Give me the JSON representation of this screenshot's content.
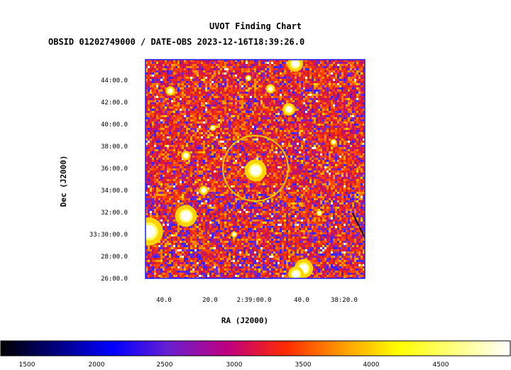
{
  "title": "UVOT Finding Chart",
  "subtitle": "OBSID 01202749000 / DATE-OBS 2023-12-16T18:39:26.0",
  "xlabel": "RA (J2000)",
  "ylabel": "Dec (J2000)",
  "x_ticks": [
    "40.0",
    "20.0",
    "2:39:00.0",
    "40.0",
    "38:20.0"
  ],
  "y_ticks": [
    "44:00.0",
    "42:00.0",
    "40:00.0",
    "38:00.0",
    "36:00.0",
    "34:00.0",
    "32:00.0",
    "33:30:00.0",
    "28:00.0",
    "26:00.0"
  ],
  "colorbar": {
    "ticks": [
      "1500",
      "2000",
      "2500",
      "3000",
      "3500",
      "4000",
      "4500"
    ],
    "colormap": "bb",
    "range": [
      1250,
      5000
    ]
  },
  "marker": {
    "shape": "circle",
    "color": "#e8c800"
  },
  "frame_color": "#1a1aff"
}
